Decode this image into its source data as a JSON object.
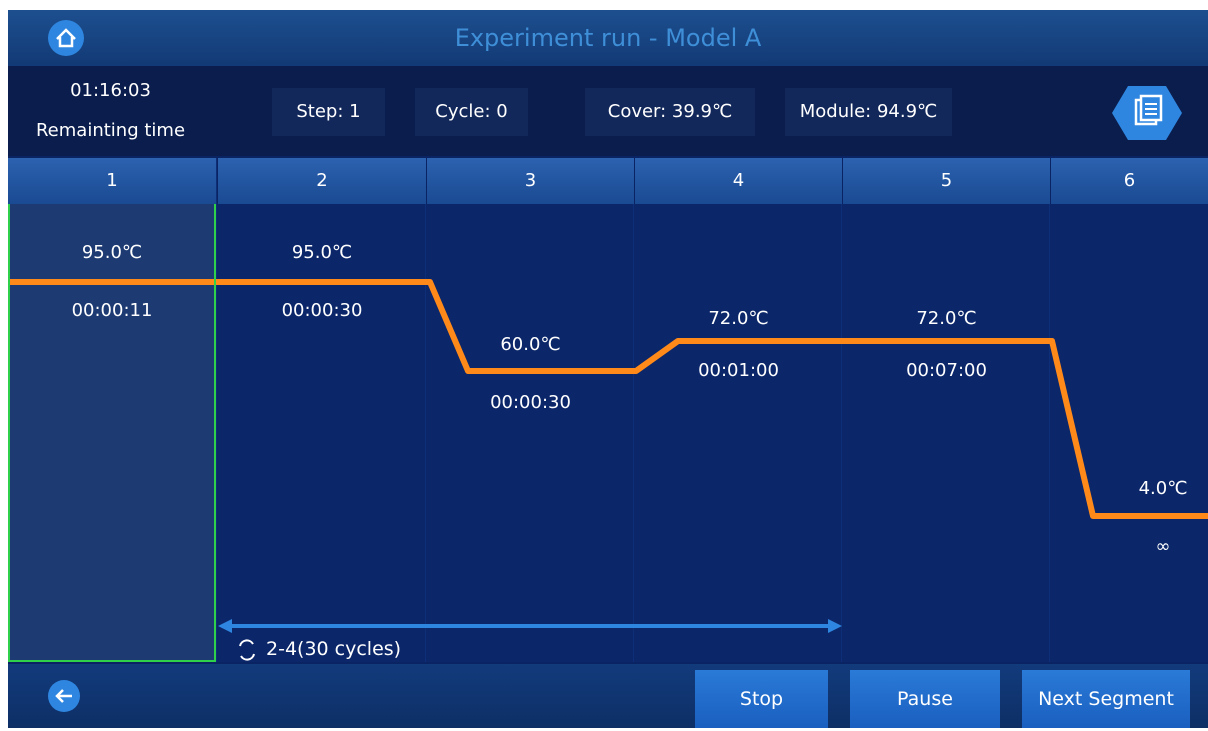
{
  "header": {
    "title": "Experiment run - Model A"
  },
  "status": {
    "remaining": "01:16:03",
    "remaining_label": "Remainting time",
    "step": "Step: 1",
    "cycle": "Cycle: 0",
    "cover": "Cover: 39.9℃",
    "module": "Module: 94.9℃"
  },
  "steps": [
    {
      "number": "1",
      "temp": "95.0℃",
      "time": "00:00:11"
    },
    {
      "number": "2",
      "temp": "95.0℃",
      "time": "00:00:30"
    },
    {
      "number": "3",
      "temp": "60.0℃",
      "time": "00:00:30"
    },
    {
      "number": "4",
      "temp": "72.0℃",
      "time": "00:01:00"
    },
    {
      "number": "5",
      "temp": "72.0℃",
      "time": "00:07:00"
    },
    {
      "number": "6",
      "temp": "4.0℃",
      "time": "∞"
    }
  ],
  "loop": {
    "label": "2-4(30 cycles)"
  },
  "buttons": [
    "Stop",
    "Pause",
    "Next Segment"
  ]
}
